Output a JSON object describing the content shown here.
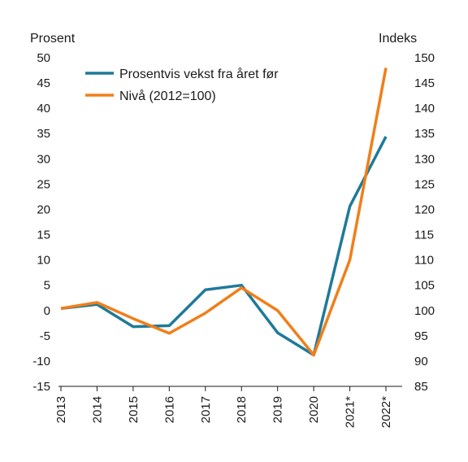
{
  "chart_data": {
    "type": "line",
    "categories": [
      "2013",
      "2014",
      "2015",
      "2016",
      "2017",
      "2018",
      "2019",
      "2020",
      "2021*",
      "2022*"
    ],
    "ylabel_left": "Prosent",
    "ylabel_right": "Indeks",
    "ylim_left": [
      -15,
      50
    ],
    "ylim_right": [
      85,
      150
    ],
    "yticks_left": [
      -15,
      -10,
      -5,
      0,
      5,
      10,
      15,
      20,
      25,
      30,
      35,
      40,
      45,
      50
    ],
    "yticks_right": [
      85,
      90,
      95,
      100,
      105,
      110,
      115,
      120,
      125,
      130,
      135,
      140,
      145,
      150
    ],
    "grid": false,
    "legend_position": "top-left",
    "series": [
      {
        "name": "Prosentvis vekst fra året før",
        "axis": "left",
        "color": "#1f7a99",
        "values": [
          0.4,
          1.2,
          -3.2,
          -3.0,
          4.1,
          5.0,
          -4.4,
          -8.8,
          20.6,
          34.4
        ]
      },
      {
        "name": "Nivå (2012=100)",
        "axis": "right",
        "color": "#f07f1a",
        "values": [
          100.4,
          101.6,
          98.4,
          95.5,
          99.5,
          104.5,
          100.0,
          91.2,
          110.0,
          148.0
        ]
      }
    ]
  }
}
